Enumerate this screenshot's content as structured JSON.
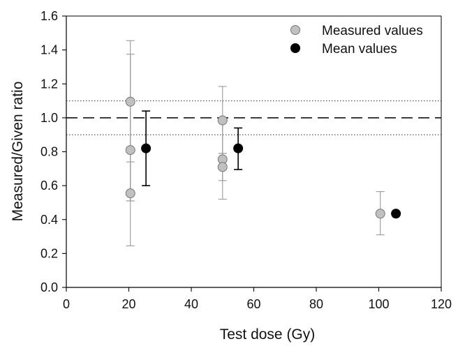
{
  "chart_data": {
    "type": "scatter",
    "title": "",
    "xlabel": "Test dose (Gy)",
    "ylabel": "Measured/Given ratio",
    "xlim": [
      0,
      120
    ],
    "ylim": [
      0,
      1.6
    ],
    "xticks": [
      0,
      20,
      40,
      60,
      80,
      100,
      120
    ],
    "yticks": [
      0.0,
      0.2,
      0.4,
      0.6,
      0.8,
      1.0,
      1.2,
      1.4,
      1.6
    ],
    "xtick_labels": [
      "0",
      "20",
      "40",
      "60",
      "80",
      "100",
      "120"
    ],
    "ytick_labels": [
      "0.0",
      "0.2",
      "0.4",
      "0.6",
      "0.8",
      "1.0",
      "1.2",
      "1.4",
      "1.6"
    ],
    "grid": false,
    "legend_position": "top-right",
    "reference_lines": [
      {
        "y": 1.0,
        "style": "dashed"
      },
      {
        "y": 1.1,
        "style": "dotted"
      },
      {
        "y": 0.9,
        "style": "dotted"
      }
    ],
    "series": [
      {
        "name": "Measured values",
        "color": "#c0c0c0",
        "edge_color": "#777777",
        "errorbar_color": "#999999",
        "points": [
          {
            "x": 20.5,
            "y": 1.095,
            "err_low": 0.245,
            "err_high": 1.455
          },
          {
            "x": 20.5,
            "y": 0.81,
            "err_low": 0.51,
            "err_high": 1.375
          },
          {
            "x": 20.5,
            "y": 0.555,
            "err_low": 0.51,
            "err_high": 0.74
          },
          {
            "x": 50.0,
            "y": 0.985,
            "err_low": 0.79,
            "err_high": 1.185
          },
          {
            "x": 50.0,
            "y": 0.755,
            "err_low": 0.52,
            "err_high": 0.995
          },
          {
            "x": 50.0,
            "y": 0.71,
            "err_low": 0.63,
            "err_high": 0.79
          },
          {
            "x": 100.5,
            "y": 0.435,
            "err_low": 0.31,
            "err_high": 0.565
          }
        ]
      },
      {
        "name": "Mean values",
        "color": "#000000",
        "edge_color": "#000000",
        "errorbar_color": "#000000",
        "points": [
          {
            "x": 25.5,
            "y": 0.82,
            "err_low": 0.6,
            "err_high": 1.04
          },
          {
            "x": 55.0,
            "y": 0.82,
            "err_low": 0.695,
            "err_high": 0.94
          },
          {
            "x": 105.5,
            "y": 0.435,
            "err_low": null,
            "err_high": null
          }
        ]
      }
    ]
  }
}
